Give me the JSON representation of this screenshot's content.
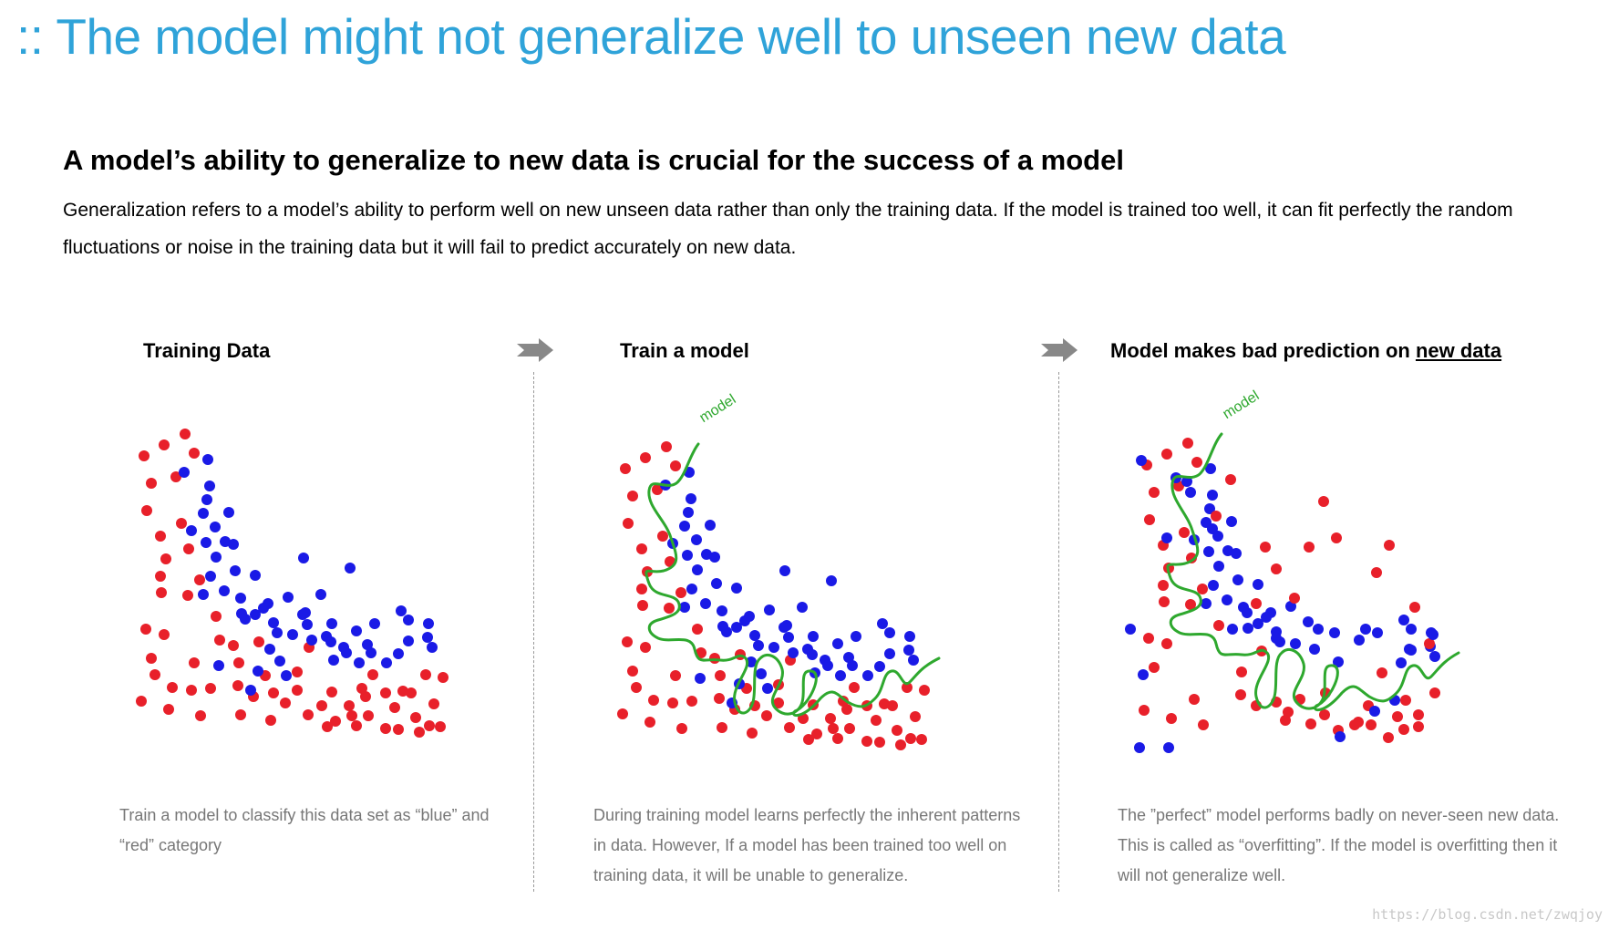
{
  "title": ":: The model might not generalize well to unseen new data",
  "headline": "A model’s ability to generalize to new data is crucial for  the success of a model",
  "intro": "Generalization refers to a model’s ability to perform well on new unseen data rather than only the training data. If the model is trained too well, it can fit perfectly the random fluctuations or  noise in the training data but it will fail to predict accurately on new data.",
  "panels": [
    {
      "heading": "Training Data",
      "caption": "Train a model to classify this data set as “blue” and “red” category"
    },
    {
      "heading": "Train a  model",
      "caption": "During training model learns perfectly the inherent patterns in data. However, If a model has been trained too well on training data, it will be unable to generalize.",
      "model_label": "model"
    },
    {
      "heading_prefix": "Model makes bad prediction on ",
      "heading_emphasis": "new data",
      "caption": "The ”perfect” model performs badly on never-seen new data. This is called as “overfitting”. If the model is overfitting then it will not generalize well.",
      "model_label": "model"
    }
  ],
  "watermark": "https://blog.csdn.net/zwqjoy",
  "colors": {
    "title": "#2fa3d9",
    "red_point": "#e8202a",
    "blue_point": "#1a1ae6",
    "model_curve": "#2ea82e",
    "arrow": "#888888"
  },
  "icons": [
    "arrow-right-icon",
    "arrow-right-icon"
  ]
}
